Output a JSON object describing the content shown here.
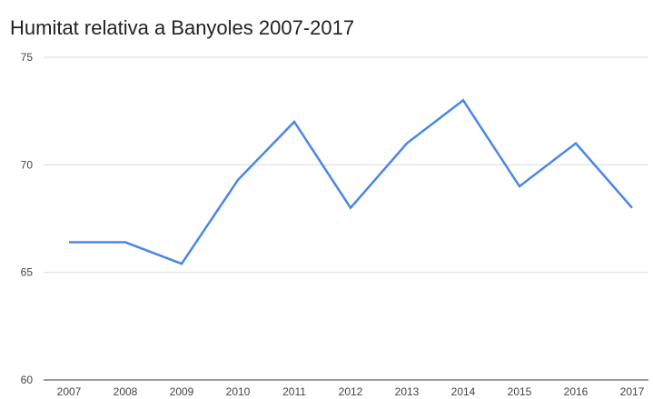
{
  "chart_data": {
    "type": "line",
    "title": "Humitat relativa a Banyoles 2007-2017",
    "xlabel": "",
    "ylabel": "",
    "categories": [
      "2007",
      "2008",
      "2009",
      "2010",
      "2011",
      "2012",
      "2013",
      "2014",
      "2015",
      "2016",
      "2017"
    ],
    "series": [
      {
        "values": [
          66.4,
          66.4,
          65.4,
          69.3,
          72,
          68,
          71,
          73,
          69,
          71,
          68
        ]
      }
    ],
    "ylim": [
      60,
      75
    ],
    "yticks": [
      "60",
      "65",
      "70",
      "75"
    ],
    "grid": true,
    "legend": "none",
    "colors": {
      "line": "#4a86e8",
      "grid": "#d9d9d9",
      "axis": "#333333"
    }
  }
}
